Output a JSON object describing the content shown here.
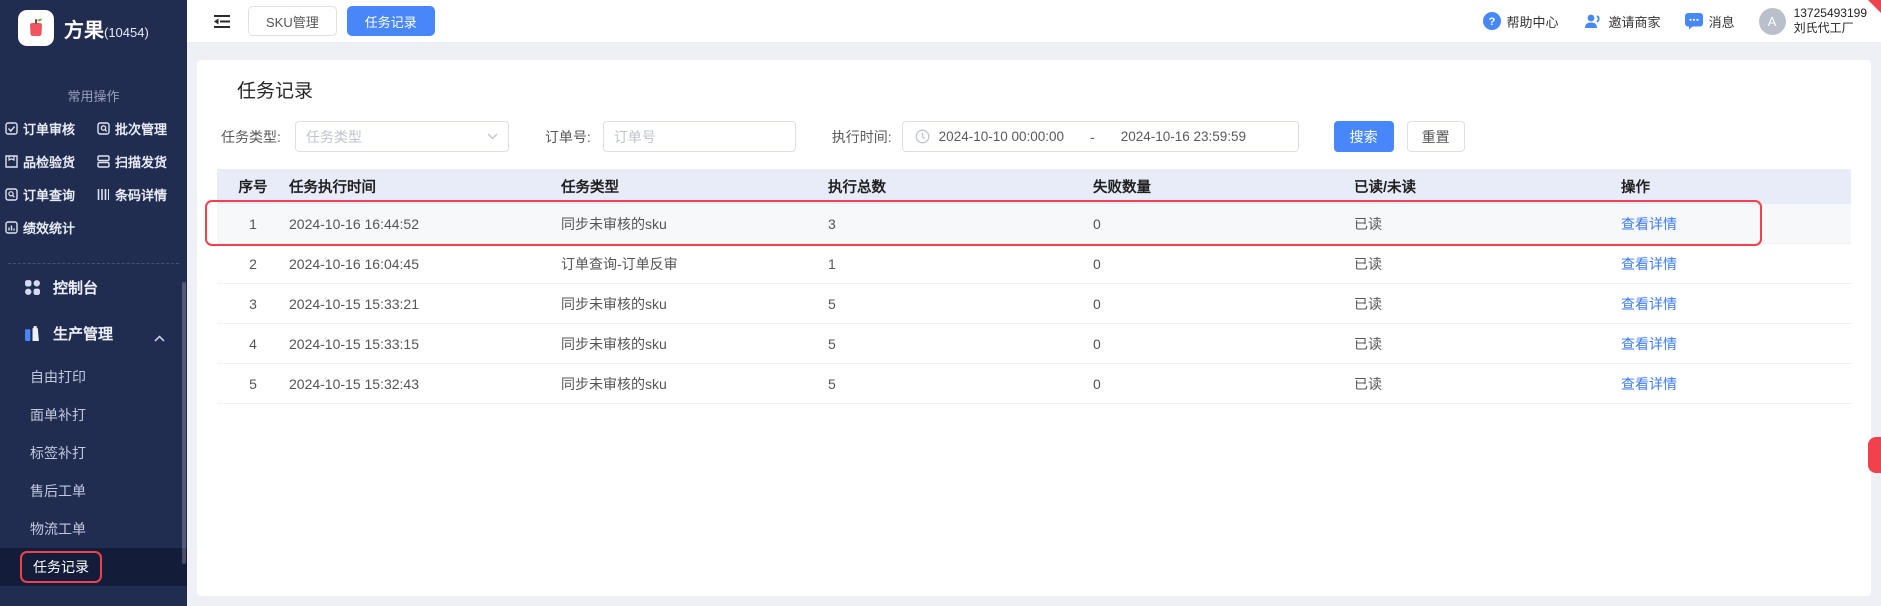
{
  "colors": {
    "accent_blue": "#4787fa",
    "link_blue": "#3d7bfa",
    "highlight_red": "#f2404d",
    "sidebar_bg": "#202c50",
    "table_header_bg": "#e8ecf8"
  },
  "sidebar": {
    "logo": {
      "brand": "方果",
      "suffix": "(10454)",
      "icon": "apple-logo-icon"
    },
    "section_label": "常用操作",
    "quick_items": [
      {
        "label": "订单审核",
        "icon": "checkbox-icon"
      },
      {
        "label": "批次管理",
        "icon": "batch-icon"
      },
      {
        "label": "品检验货",
        "icon": "inspect-icon"
      },
      {
        "label": "扫描发货",
        "icon": "scan-icon"
      },
      {
        "label": "订单查询",
        "icon": "search-box-icon"
      },
      {
        "label": "条码详情",
        "icon": "barcode-icon"
      },
      {
        "label": "绩效统计",
        "icon": "chart-icon"
      }
    ],
    "menu": [
      {
        "label": "控制台",
        "icon": "grid-icon"
      },
      {
        "label": "生产管理",
        "icon": "production-icon",
        "expanded": true
      }
    ],
    "sub_menu": [
      {
        "label": "自由打印"
      },
      {
        "label": "面单补打"
      },
      {
        "label": "标签补打"
      },
      {
        "label": "售后工单"
      },
      {
        "label": "物流工单"
      },
      {
        "label": "任务记录",
        "active": true
      }
    ]
  },
  "topbar": {
    "tabs": [
      {
        "label": "SKU管理",
        "active": false
      },
      {
        "label": "任务记录",
        "active": true
      }
    ],
    "links": [
      {
        "label": "帮助中心",
        "icon": "help-icon"
      },
      {
        "label": "邀请商家",
        "icon": "invite-icon"
      },
      {
        "label": "消息",
        "icon": "message-icon"
      }
    ],
    "user": {
      "avatar_letter": "A",
      "phone": "13725493199",
      "company": "刘氏代工厂"
    }
  },
  "main": {
    "title": "任务记录",
    "filters": {
      "task_type_label": "任务类型:",
      "task_type_placeholder": "任务类型",
      "order_no_label": "订单号:",
      "order_no_placeholder": "订单号",
      "exec_time_label": "执行时间:",
      "date_start": "2024-10-10 00:00:00",
      "date_separator": "-",
      "date_end": "2024-10-16 23:59:59",
      "search_label": "搜索",
      "reset_label": "重置"
    },
    "table": {
      "headers": [
        "序号",
        "任务执行时间",
        "任务类型",
        "执行总数",
        "失败数量",
        "已读/未读",
        "操作"
      ],
      "rows": [
        {
          "seq": "1",
          "time": "2024-10-16 16:44:52",
          "type": "同步未审核的sku",
          "total": "3",
          "failed": "0",
          "read": "已读",
          "action": "查看详情",
          "highlighted": true
        },
        {
          "seq": "2",
          "time": "2024-10-16 16:04:45",
          "type": "订单查询-订单反审",
          "total": "1",
          "failed": "0",
          "read": "已读",
          "action": "查看详情",
          "highlighted": false
        },
        {
          "seq": "3",
          "time": "2024-10-15 15:33:21",
          "type": "同步未审核的sku",
          "total": "5",
          "failed": "0",
          "read": "已读",
          "action": "查看详情",
          "highlighted": false
        },
        {
          "seq": "4",
          "time": "2024-10-15 15:33:15",
          "type": "同步未审核的sku",
          "total": "5",
          "failed": "0",
          "read": "已读",
          "action": "查看详情",
          "highlighted": false
        },
        {
          "seq": "5",
          "time": "2024-10-15 15:32:43",
          "type": "同步未审核的sku",
          "total": "5",
          "failed": "0",
          "read": "已读",
          "action": "查看详情",
          "highlighted": false
        }
      ]
    }
  }
}
